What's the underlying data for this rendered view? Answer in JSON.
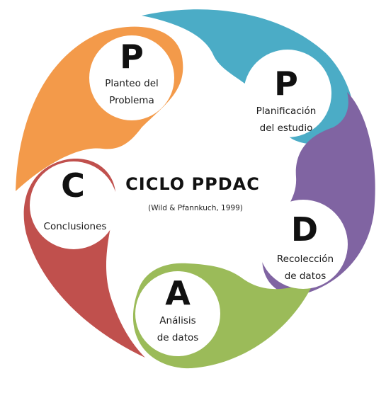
{
  "title": "CICLO PPDAC",
  "citation": "(Wild & Pfannkuch, 1999)",
  "stages": [
    {
      "letter": "P",
      "line1": "Planteo del",
      "line2": "Problema",
      "color": "#F39A4A"
    },
    {
      "letter": "P",
      "line1": "Planificación",
      "line2": "del estudio",
      "color": "#4BACC6"
    },
    {
      "letter": "D",
      "line1": "Recolección",
      "line2": "de datos",
      "color": "#8064A2"
    },
    {
      "letter": "A",
      "line1": "Análisis",
      "line2": "de datos",
      "color": "#9BBB59"
    },
    {
      "letter": "C",
      "line1": "Conclusiones",
      "line2": "",
      "color": "#C0504D"
    }
  ]
}
